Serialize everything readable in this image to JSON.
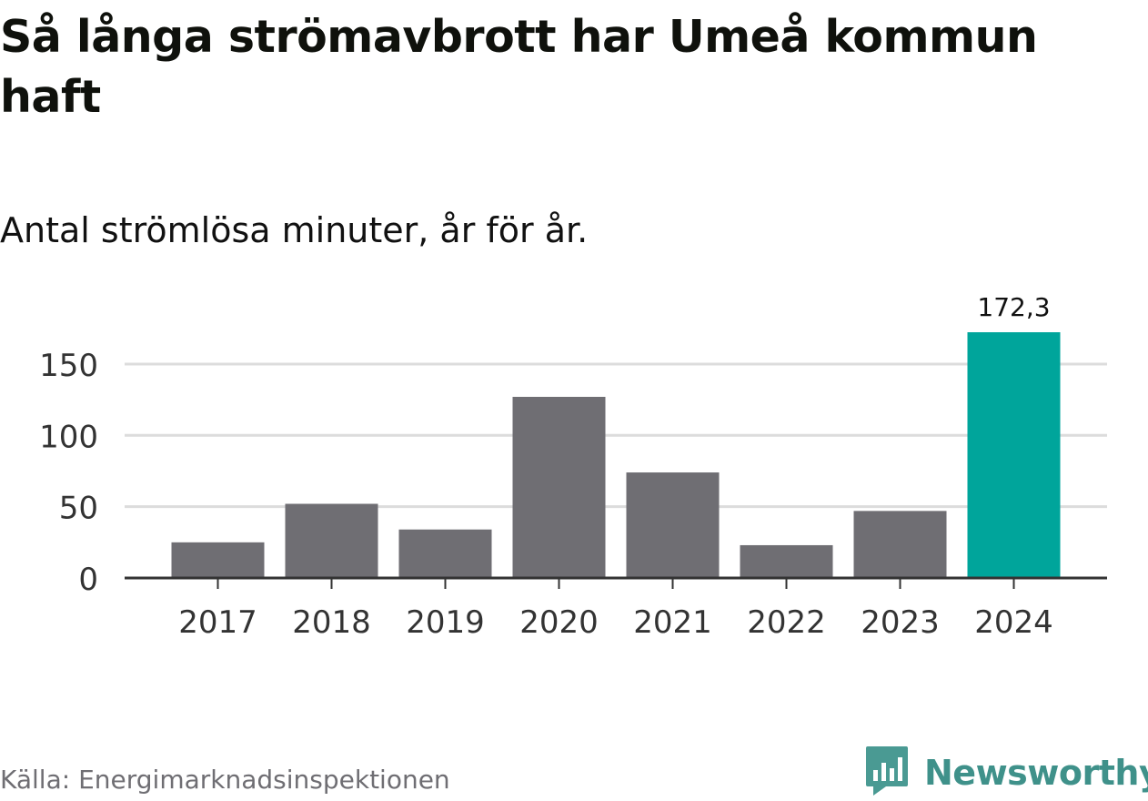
{
  "title": "Så långa strömavbrott har Umeå kommun haft",
  "subtitle": "Antal strömlösa minuter, år för år.",
  "source": "Källa: Energimarknadsinspektionen",
  "brand": {
    "name": "Newsworthy",
    "icon": "newsworthy-logo-icon",
    "color": "#4a9a93"
  },
  "chart_data": {
    "type": "bar",
    "categories": [
      "2017",
      "2018",
      "2019",
      "2020",
      "2021",
      "2022",
      "2023",
      "2024"
    ],
    "values": [
      25,
      52,
      34,
      127,
      74,
      23,
      47,
      172.3
    ],
    "data_labels": [
      null,
      null,
      null,
      null,
      null,
      null,
      null,
      "172,3"
    ],
    "ylim": [
      0,
      172.3
    ],
    "yticks": [
      0,
      50,
      100,
      150
    ],
    "ytick_labels": [
      "0",
      "50",
      "100",
      "150"
    ],
    "grid": true,
    "colors": {
      "default": "#6f6e73",
      "highlight": "#00a59b",
      "grid": "#dcdcdc",
      "axis": "#333333"
    },
    "highlight_index": 7
  }
}
